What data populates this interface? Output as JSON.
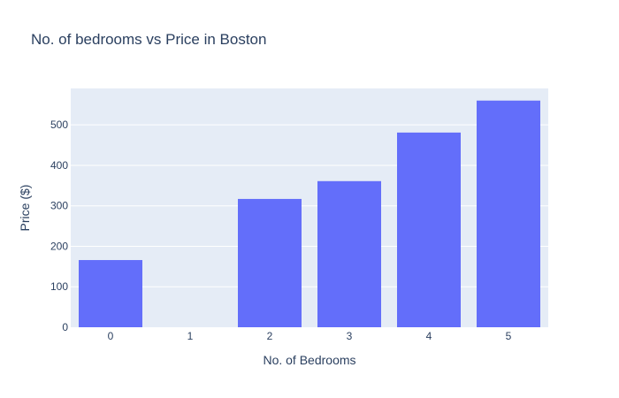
{
  "chart_data": {
    "type": "bar",
    "title": "No. of bedrooms vs Price in Boston",
    "xlabel": "No. of Bedrooms",
    "ylabel": "Price ($)",
    "categories": [
      "0",
      "1",
      "2",
      "3",
      "4",
      "5"
    ],
    "values": [
      166,
      0,
      317,
      361,
      481,
      560
    ],
    "yticks": [
      0,
      100,
      200,
      300,
      400,
      500
    ],
    "ylim": [
      0,
      590
    ],
    "grid": true,
    "bar_color": "#636efa",
    "plot_background": "#e5ecf6",
    "gridline_color": "#ffffff",
    "text_color": "#2a3f5f"
  }
}
